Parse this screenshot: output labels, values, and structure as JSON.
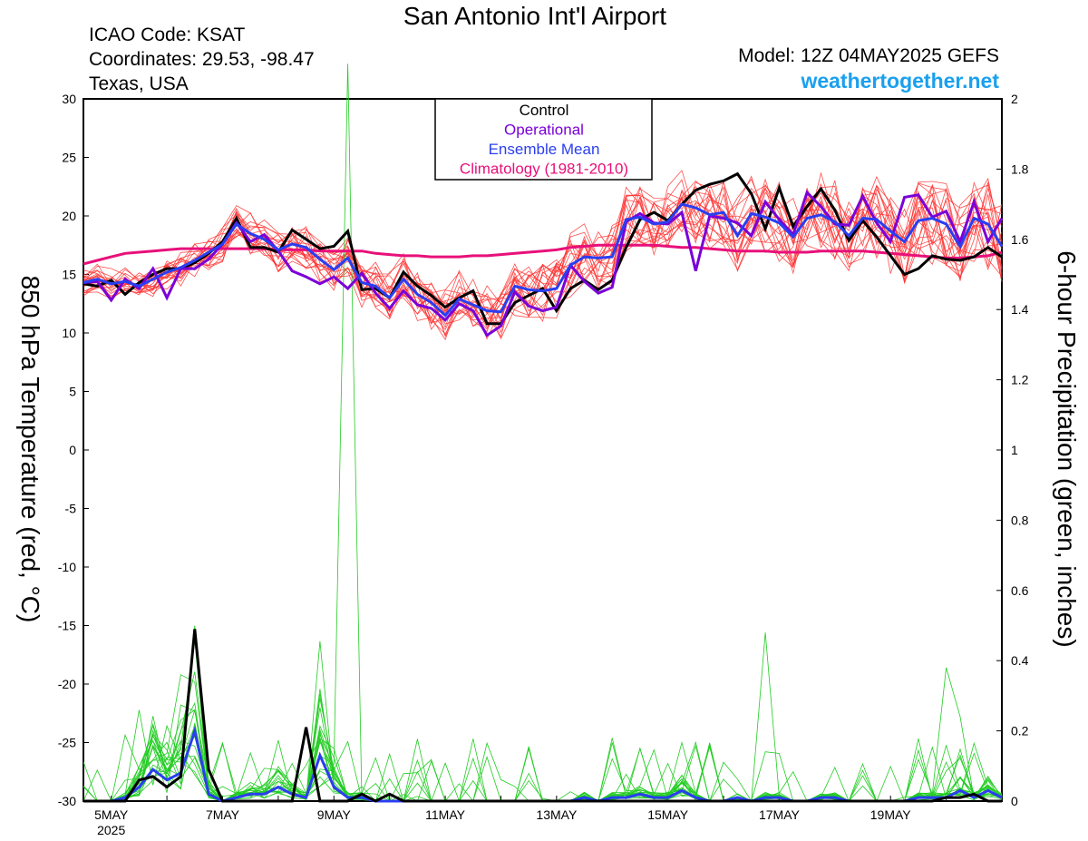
{
  "header": {
    "title": "San Antonio Int'l Airport",
    "icao": "ICAO Code: KSAT",
    "coordinates": "Coordinates: 29.53, -98.47",
    "location": "Texas, USA",
    "model": "Model: 12Z 04MAY2025 GEFS",
    "website": "weathertogether.net"
  },
  "colors": {
    "control": "#000000",
    "operational": "#7a00d8",
    "ensemble_mean": "#2a3ef0",
    "climatology": "#e8107a",
    "members_temp": "#ff3030",
    "members_precip": "#22cc22",
    "website": "#1aa0ee"
  },
  "chart_data": {
    "type": "line",
    "ylabel_left": "850 hPa Temperature (red, °C)",
    "ylabel_right": "6-hour Precipitation (green, inches)",
    "ylim_left": [
      -30,
      30
    ],
    "ylim_right": [
      0,
      2
    ],
    "yticks_left": [
      "30",
      "25",
      "20",
      "15",
      "10",
      "5",
      "0",
      "-5",
      "-10",
      "-15",
      "-20",
      "-25",
      "-30"
    ],
    "yticks_right": [
      "2",
      "1.8",
      "1.6",
      "1.4",
      "1.2",
      "1",
      "0.8",
      "0.6",
      "0.4",
      "0.2",
      "0"
    ],
    "x_start": "04MAY2025 12Z",
    "x_step_hours": 6,
    "x_ticks": [
      {
        "label": "5MAY",
        "sub": "2025",
        "day": 5
      },
      {
        "label": "7MAY",
        "day": 7
      },
      {
        "label": "9MAY",
        "day": 9
      },
      {
        "label": "11MAY",
        "day": 11
      },
      {
        "label": "13MAY",
        "day": 13
      },
      {
        "label": "15MAY",
        "day": 15
      },
      {
        "label": "17MAY",
        "day": 17
      },
      {
        "label": "19MAY",
        "day": 19
      }
    ],
    "legend": {
      "position": "top-center",
      "entries": [
        "Control",
        "Operational",
        "Ensemble Mean",
        "Climatology (1981-2010)"
      ]
    },
    "series": [
      {
        "name": "Control",
        "axis": "temp",
        "color": "#000000",
        "values": [
          14.2,
          14.0,
          14.5,
          13.3,
          14.3,
          15.0,
          15.5,
          15.5,
          16.0,
          16.8,
          17.8,
          19.8,
          17.3,
          17.3,
          16.9,
          18.8,
          18.0,
          17.2,
          17.4,
          18.7,
          13.7,
          13.8,
          13.0,
          15.2,
          14.0,
          13.2,
          12.2,
          13.0,
          13.6,
          10.8,
          10.8,
          12.6,
          13.2,
          13.8,
          11.9,
          13.8,
          14.5,
          13.7,
          14.5,
          17.3,
          19.7,
          20.3,
          19.6,
          21.0,
          22.2,
          22.7,
          23.0,
          23.6,
          21.9,
          18.9,
          22.4,
          19.1,
          20.8,
          22.3,
          20.5,
          17.9,
          19.6,
          18.2,
          16.6,
          15.0,
          15.5,
          16.6,
          16.3,
          16.2,
          16.5,
          17.3,
          16.5
        ]
      },
      {
        "name": "Operational",
        "axis": "temp",
        "color": "#7a00d8",
        "values": [
          14.3,
          14.4,
          12.8,
          14.6,
          13.8,
          15.5,
          13.0,
          15.5,
          15.5,
          16.3,
          17.6,
          19.4,
          17.8,
          18.4,
          17.0,
          15.3,
          14.8,
          14.2,
          14.8,
          13.8,
          15.1,
          13.4,
          12.1,
          13.6,
          12.4,
          12.1,
          11.1,
          12.5,
          11.9,
          9.8,
          10.6,
          13.5,
          12.3,
          11.9,
          12.2,
          15.8,
          14.4,
          13.4,
          13.9,
          19.5,
          20.2,
          19.4,
          19.3,
          20.3,
          15.3,
          20.0,
          19.8,
          19.4,
          18.3,
          21.2,
          19.7,
          18.4,
          22.0,
          20.8,
          19.3,
          19.2,
          21.7,
          19.4,
          17.8,
          21.6,
          21.8,
          19.9,
          20.4,
          17.8,
          21.2,
          17.8,
          19.8
        ]
      },
      {
        "name": "Ensemble Mean",
        "axis": "temp",
        "color": "#2a3ef0",
        "values": [
          14.3,
          14.6,
          14.2,
          14.4,
          14.0,
          14.6,
          15.2,
          15.6,
          16.2,
          16.9,
          17.6,
          19.3,
          18.5,
          18.0,
          17.1,
          17.6,
          17.3,
          16.3,
          15.4,
          16.4,
          14.3,
          14.0,
          13.0,
          14.6,
          13.3,
          12.6,
          11.5,
          12.9,
          12.4,
          11.9,
          11.8,
          14.0,
          13.7,
          13.6,
          13.8,
          15.8,
          16.5,
          16.4,
          16.5,
          19.7,
          19.9,
          19.3,
          19.5,
          21.0,
          20.7,
          20.1,
          20.3,
          18.3,
          20.2,
          19.9,
          19.4,
          18.2,
          19.8,
          20.1,
          19.5,
          18.3,
          19.8,
          19.7,
          18.7,
          17.8,
          19.6,
          19.8,
          19.3,
          17.4,
          19.8,
          19.3,
          17.4
        ]
      },
      {
        "name": "Climatology (1981-2010)",
        "axis": "temp",
        "color": "#e8107a",
        "values": [
          15.9,
          16.2,
          16.5,
          16.8,
          16.9,
          17.0,
          17.1,
          17.2,
          17.2,
          17.2,
          17.2,
          17.2,
          17.2,
          17.2,
          17.1,
          17.1,
          17.1,
          17.0,
          17.0,
          17.0,
          17.0,
          16.8,
          16.7,
          16.6,
          16.6,
          16.5,
          16.5,
          16.5,
          16.6,
          16.6,
          16.7,
          16.8,
          16.9,
          17.0,
          17.1,
          17.3,
          17.4,
          17.5,
          17.5,
          17.5,
          17.5,
          17.5,
          17.4,
          17.3,
          17.3,
          17.2,
          17.1,
          17.0,
          17.0,
          17.0,
          16.9,
          16.9,
          16.9,
          17.0,
          17.0,
          17.0,
          17.0,
          16.9,
          16.8,
          16.7,
          16.6,
          16.5,
          16.4,
          16.4,
          16.5,
          16.6,
          16.9
        ]
      },
      {
        "name": "Control precipitation",
        "axis": "precip",
        "color": "#000000",
        "values": [
          0,
          0,
          0,
          0,
          0.06,
          0.07,
          0.04,
          0.07,
          0.49,
          0.09,
          0,
          0,
          0,
          0,
          0,
          0,
          0.21,
          0,
          0,
          0,
          0.02,
          0,
          0.02,
          0,
          0,
          0,
          0,
          0,
          0,
          0,
          0,
          0,
          0,
          0,
          0,
          0,
          0,
          0,
          0,
          0,
          0,
          0,
          0,
          0,
          0,
          0,
          0,
          0,
          0,
          0,
          0,
          0,
          0,
          0,
          0,
          0,
          0,
          0,
          0,
          0,
          0,
          0,
          0.01,
          0.01,
          0.02,
          0,
          0
        ]
      },
      {
        "name": "Ensemble Mean precipitation",
        "axis": "precip",
        "color": "#2a3ef0",
        "values": [
          0,
          0,
          0,
          0.01,
          0.04,
          0.09,
          0.06,
          0.08,
          0.2,
          0.02,
          0,
          0.01,
          0.02,
          0.02,
          0.04,
          0.02,
          0.01,
          0.13,
          0.04,
          0.01,
          0.01,
          0,
          0,
          0,
          0,
          0,
          0,
          0,
          0,
          0,
          0,
          0,
          0,
          0,
          0,
          0,
          0.01,
          0,
          0.01,
          0.01,
          0.02,
          0.01,
          0.01,
          0.03,
          0.01,
          0,
          0,
          0.01,
          0,
          0.01,
          0.01,
          0,
          0,
          0.01,
          0.01,
          0,
          0,
          0,
          0,
          0,
          0.01,
          0.01,
          0.01,
          0.03,
          0.01,
          0.03,
          0.01
        ]
      }
    ]
  }
}
